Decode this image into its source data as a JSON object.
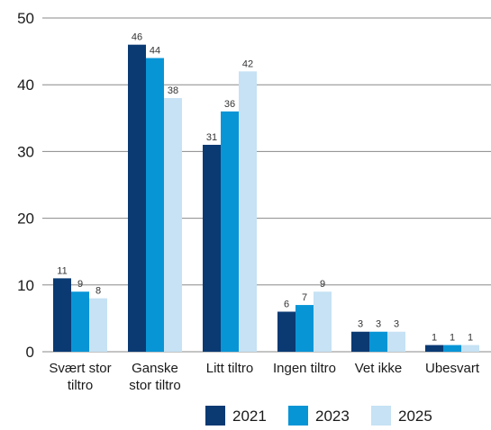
{
  "chart_data": {
    "type": "bar",
    "title": "",
    "xlabel": "",
    "ylabel": "",
    "ylim": [
      0,
      50
    ],
    "yticks": [
      0,
      10,
      20,
      30,
      40,
      50
    ],
    "grid": true,
    "legend_position": "bottom-right",
    "categories": [
      [
        "Svært stor",
        "tiltro"
      ],
      [
        "Ganske",
        "stor tiltro"
      ],
      [
        "Litt tiltro"
      ],
      [
        "Ingen tiltro"
      ],
      [
        "Vet ikke"
      ],
      [
        "Ubesvart"
      ]
    ],
    "series": [
      {
        "name": "2021",
        "color": "#0b3a73",
        "values": [
          11,
          46,
          31,
          6,
          3,
          1
        ]
      },
      {
        "name": "2023",
        "color": "#0895d6",
        "values": [
          9,
          44,
          36,
          7,
          3,
          1
        ]
      },
      {
        "name": "2025",
        "color": "#c6e2f4",
        "values": [
          8,
          38,
          42,
          9,
          3,
          1
        ]
      }
    ]
  }
}
